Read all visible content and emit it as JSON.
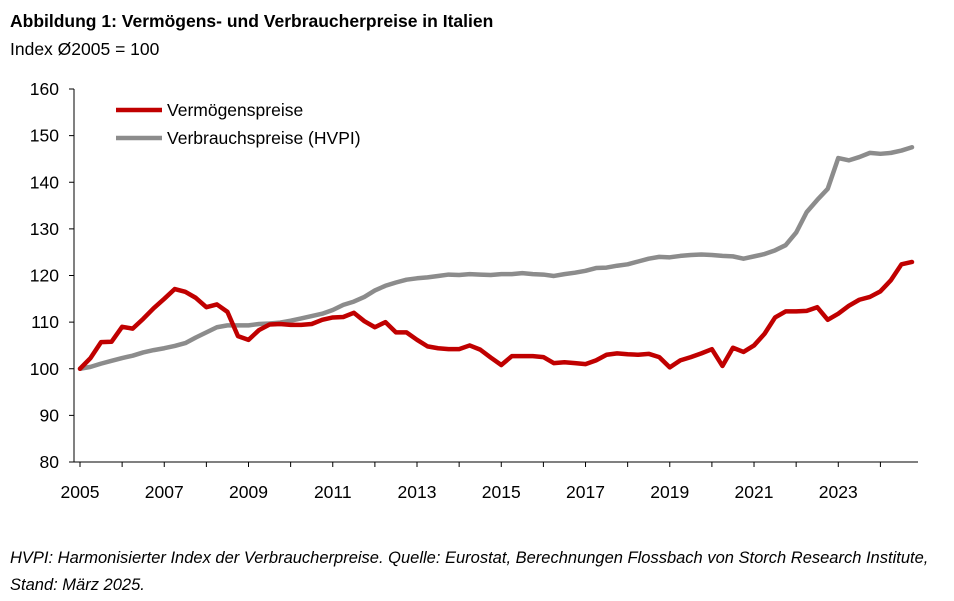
{
  "figure": {
    "title": "Abbildung 1: Vermögens- und Verbraucherpreise in Italien",
    "subtitle": "Index Ø2005 = 100",
    "source": "HVPI: Harmonisierter Index der Verbraucherpreise. Quelle: Eurostat, Berechnungen Flossbach von Storch Research Institute, Stand: März 2025."
  },
  "chart_data": {
    "type": "line",
    "title": "Abbildung 1: Vermögens- und Verbraucherpreise in Italien",
    "ylabel": "Index Ø2005 = 100",
    "xlabel": "",
    "xlim": [
      2005,
      2024.75
    ],
    "ylim": [
      80,
      160
    ],
    "yticks": [
      80,
      90,
      100,
      110,
      120,
      130,
      140,
      150,
      160
    ],
    "xticks": [
      "2005",
      "2007",
      "2009",
      "2011",
      "2013",
      "2015",
      "2017",
      "2019",
      "2021",
      "2023"
    ],
    "grid": false,
    "legend_position": "top-left",
    "x": [
      2005.0,
      2005.25,
      2005.5,
      2005.75,
      2006.0,
      2006.25,
      2006.5,
      2006.75,
      2007.0,
      2007.25,
      2007.5,
      2007.75,
      2008.0,
      2008.25,
      2008.5,
      2008.75,
      2009.0,
      2009.25,
      2009.5,
      2009.75,
      2010.0,
      2010.25,
      2010.5,
      2010.75,
      2011.0,
      2011.25,
      2011.5,
      2011.75,
      2012.0,
      2012.25,
      2012.5,
      2012.75,
      2013.0,
      2013.25,
      2013.5,
      2013.75,
      2014.0,
      2014.25,
      2014.5,
      2014.75,
      2015.0,
      2015.25,
      2015.5,
      2015.75,
      2016.0,
      2016.25,
      2016.5,
      2016.75,
      2017.0,
      2017.25,
      2017.5,
      2017.75,
      2018.0,
      2018.25,
      2018.5,
      2018.75,
      2019.0,
      2019.25,
      2019.5,
      2019.75,
      2020.0,
      2020.25,
      2020.5,
      2020.75,
      2021.0,
      2021.25,
      2021.5,
      2021.75,
      2022.0,
      2022.25,
      2022.5,
      2022.75,
      2023.0,
      2023.25,
      2023.5,
      2023.75,
      2024.0,
      2024.25,
      2024.5,
      2024.75
    ],
    "series": [
      {
        "name": "Vermögenspreise",
        "color": "#C00000",
        "values": [
          100.0,
          102.3,
          105.7,
          105.8,
          109.0,
          108.6,
          110.7,
          113.0,
          115.0,
          117.1,
          116.5,
          115.2,
          113.2,
          113.8,
          112.2,
          107.0,
          106.2,
          108.3,
          109.5,
          109.6,
          109.4,
          109.4,
          109.6,
          110.5,
          111.0,
          111.1,
          112.0,
          110.2,
          108.9,
          110.0,
          107.8,
          107.8,
          106.2,
          104.8,
          104.4,
          104.2,
          104.2,
          105.0,
          104.1,
          102.4,
          100.8,
          102.7,
          102.7,
          102.7,
          102.5,
          101.2,
          101.4,
          101.2,
          101.0,
          101.8,
          103.0,
          103.3,
          103.1,
          103.0,
          103.2,
          102.5,
          100.3,
          101.8,
          102.5,
          103.3,
          104.2,
          100.6,
          104.5,
          103.6,
          105.0,
          107.5,
          111.0,
          112.3,
          112.3,
          112.4,
          113.2,
          110.5,
          111.8,
          113.5,
          114.8,
          115.4,
          116.6,
          119.0,
          122.4,
          122.9
        ]
      },
      {
        "name": "Verbrauchspreise (HVPI)",
        "color": "#8C8C8C",
        "values": [
          100.0,
          100.4,
          101.1,
          101.7,
          102.3,
          102.8,
          103.5,
          104.0,
          104.4,
          104.9,
          105.5,
          106.7,
          107.8,
          108.9,
          109.3,
          109.3,
          109.3,
          109.6,
          109.7,
          109.9,
          110.3,
          110.8,
          111.3,
          111.8,
          112.6,
          113.7,
          114.4,
          115.4,
          116.8,
          117.8,
          118.5,
          119.1,
          119.4,
          119.6,
          119.9,
          120.2,
          120.1,
          120.3,
          120.2,
          120.1,
          120.3,
          120.3,
          120.5,
          120.3,
          120.2,
          119.9,
          120.3,
          120.6,
          121.0,
          121.6,
          121.7,
          122.1,
          122.4,
          123.0,
          123.6,
          124.0,
          123.9,
          124.2,
          124.4,
          124.5,
          124.4,
          124.2,
          124.1,
          123.6,
          124.1,
          124.6,
          125.4,
          126.5,
          129.2,
          133.6,
          136.2,
          138.6,
          145.2,
          144.7,
          145.4,
          146.3,
          146.1,
          146.3,
          146.8,
          147.5
        ]
      }
    ]
  }
}
